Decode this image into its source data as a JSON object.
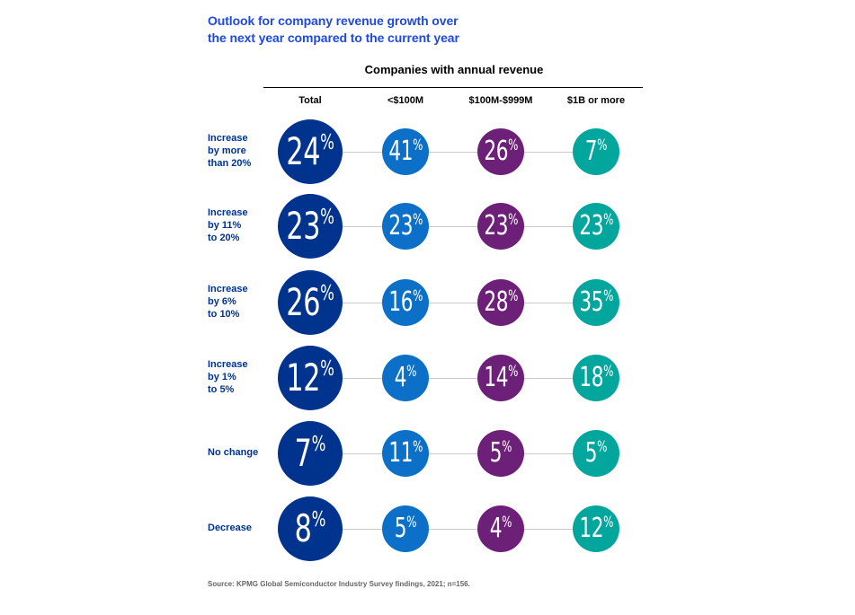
{
  "title_lines": [
    "Outlook for company revenue growth over",
    "the next year compared to the current year"
  ],
  "group_heading": "Companies with annual revenue",
  "source": "Source: KPMG Global Semiconductor Industry Survey findings, 2021; n=156.",
  "colors": {
    "title": "#1e49e2",
    "row_label": "#00338d",
    "total": "#00338d",
    "under_100m": "#0c70c8",
    "100m_999m": "#6d2077",
    "1b_or_more": "#02a69c"
  },
  "chart_data": {
    "type": "table",
    "title": "Outlook for company revenue growth over the next year compared to the current year",
    "column_group_label": "Companies with annual revenue",
    "columns": [
      "Total",
      "<$100M",
      "$100M-$999M",
      "$1B or more"
    ],
    "rows": [
      {
        "label_lines": [
          "Increase",
          "by more",
          "than 20%"
        ],
        "values": [
          24,
          41,
          26,
          7
        ]
      },
      {
        "label_lines": [
          "Increase",
          "by 11%",
          "to 20%"
        ],
        "values": [
          23,
          23,
          23,
          23
        ]
      },
      {
        "label_lines": [
          "Increase",
          "by 6%",
          "to 10%"
        ],
        "values": [
          26,
          16,
          28,
          35
        ]
      },
      {
        "label_lines": [
          "Increase",
          "by 1%",
          "to 5%"
        ],
        "values": [
          12,
          4,
          14,
          18
        ]
      },
      {
        "label_lines": [
          "No change"
        ],
        "values": [
          7,
          11,
          5,
          5
        ]
      },
      {
        "label_lines": [
          "Decrease"
        ],
        "values": [
          8,
          5,
          4,
          12
        ]
      }
    ],
    "unit": "%"
  }
}
